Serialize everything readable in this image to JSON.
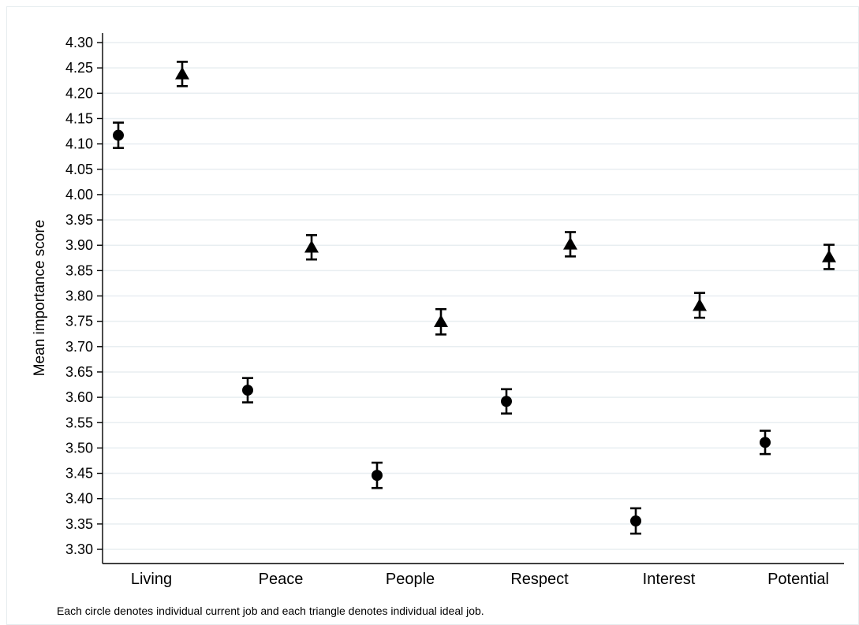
{
  "chart_data": {
    "type": "scatter",
    "title": "",
    "xlabel": "",
    "ylabel": "Mean importance score",
    "ylim": [
      3.3,
      4.3
    ],
    "yticks": [
      "3.30",
      "3.35",
      "3.40",
      "3.45",
      "3.50",
      "3.55",
      "3.60",
      "3.65",
      "3.70",
      "3.75",
      "3.80",
      "3.85",
      "3.90",
      "3.95",
      "4.00",
      "4.05",
      "4.10",
      "4.15",
      "4.20",
      "4.25",
      "4.30"
    ],
    "categories": [
      "Living",
      "Peace",
      "People",
      "Respect",
      "Interest",
      "Potential"
    ],
    "grid": true,
    "series": [
      {
        "marker": "circle",
        "values": [
          4.117,
          3.614,
          3.446,
          3.592,
          3.356,
          3.511
        ],
        "lower": [
          4.092,
          3.59,
          3.421,
          3.568,
          3.331,
          3.488
        ],
        "upper": [
          4.142,
          3.638,
          3.471,
          3.616,
          3.381,
          3.534
        ]
      },
      {
        "marker": "triangle",
        "values": [
          4.238,
          3.896,
          3.749,
          3.902,
          3.781,
          3.877
        ],
        "lower": [
          4.214,
          3.872,
          3.724,
          3.878,
          3.757,
          3.853
        ],
        "upper": [
          4.262,
          3.92,
          3.774,
          3.926,
          3.806,
          3.901
        ]
      }
    ],
    "note": "Each circle denotes individual current job and each triangle denotes individual ideal job."
  }
}
